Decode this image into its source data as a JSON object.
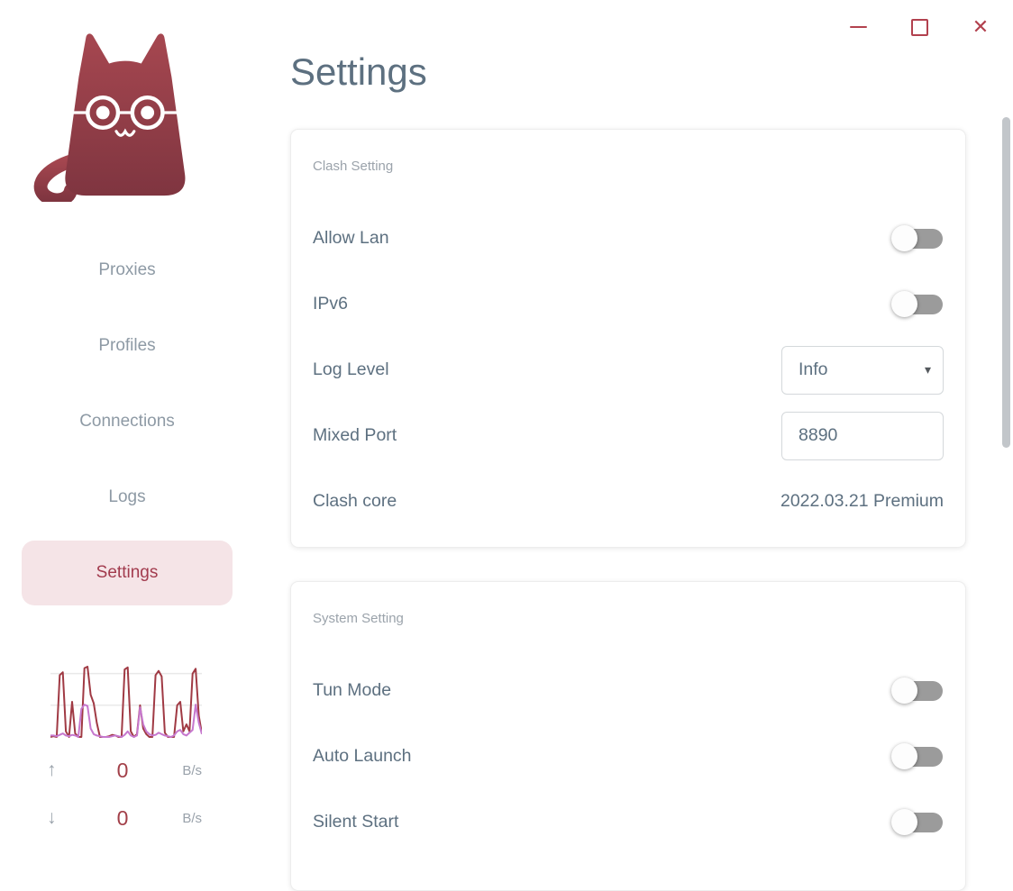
{
  "window": {
    "controls": [
      {
        "name": "minimize"
      },
      {
        "name": "maximize"
      },
      {
        "name": "close"
      }
    ]
  },
  "icons": {
    "minimize": "─",
    "maximize": "□",
    "close": "✕",
    "caret_down": "▾",
    "arrow_up": "↑",
    "arrow_down": "↓",
    "logo": "clash-cat-with-glasses"
  },
  "sidebar": {
    "items": [
      {
        "label": "Proxies",
        "active": false
      },
      {
        "label": "Profiles",
        "active": false
      },
      {
        "label": "Connections",
        "active": false
      },
      {
        "label": "Logs",
        "active": false
      },
      {
        "label": "Settings",
        "active": true
      }
    ],
    "traffic": {
      "upload": {
        "value": "0",
        "unit": "B/s"
      },
      "download": {
        "value": "0",
        "unit": "B/s"
      }
    }
  },
  "main": {
    "title": "Settings",
    "cards": [
      {
        "section": "Clash Setting",
        "rows": [
          {
            "type": "toggle",
            "label": "Allow Lan",
            "state": "off"
          },
          {
            "type": "toggle",
            "label": "IPv6",
            "state": "off"
          },
          {
            "type": "select",
            "label": "Log Level",
            "value": "Info"
          },
          {
            "type": "input",
            "label": "Mixed Port",
            "value": "8890"
          },
          {
            "type": "static",
            "label": "Clash core",
            "value": "2022.03.21 Premium"
          }
        ]
      },
      {
        "section": "System Setting",
        "rows": [
          {
            "type": "toggle",
            "label": "Tun Mode",
            "state": "off"
          },
          {
            "type": "toggle",
            "label": "Auto Launch",
            "state": "off"
          },
          {
            "type": "toggle",
            "label": "Silent Start",
            "state": "off"
          }
        ]
      }
    ]
  },
  "chart_data": {
    "type": "line",
    "title": "traffic-history",
    "xlabel": "",
    "ylabel": "",
    "ylim": [
      0,
      100
    ],
    "grid": true,
    "gridline_values": [
      44,
      89
    ],
    "legend_position": "none",
    "series": [
      {
        "name": "upload",
        "color": "#a03a44",
        "values": [
          0,
          1,
          0,
          88,
          92,
          8,
          0,
          50,
          5,
          0,
          0,
          98,
          100,
          60,
          48,
          20,
          0,
          0,
          0,
          1,
          3,
          2,
          0,
          0,
          96,
          99,
          8,
          0,
          4,
          45,
          12,
          4,
          0,
          0,
          88,
          94,
          86,
          6,
          0,
          0,
          0,
          45,
          50,
          8,
          18,
          8,
          90,
          97,
          30,
          5
        ]
      },
      {
        "name": "download",
        "color": "#c678ce",
        "values": [
          2,
          2,
          1,
          3,
          5,
          2,
          1,
          3,
          2,
          0,
          40,
          46,
          44,
          12,
          4,
          2,
          1,
          0,
          0,
          0,
          1,
          2,
          1,
          0,
          3,
          8,
          2,
          0,
          2,
          42,
          18,
          8,
          4,
          2,
          3,
          6,
          4,
          2,
          1,
          0,
          2,
          8,
          10,
          4,
          2,
          6,
          10,
          46,
          20,
          4
        ]
      }
    ]
  },
  "colors": {
    "accent_red": "#b2414e",
    "active_nav_text": "#a23b4e",
    "active_nav_bg": "#f5e4e7",
    "title_text": "#5d7080",
    "nav_text": "#8e9aa5",
    "section_text": "#9ba3ab",
    "toggle_track_off": "#9b9b9b",
    "chart_up": "#a03a44",
    "chart_down": "#c678ce",
    "cat_gradient_top": "#a64750",
    "cat_gradient_bottom": "#7f3540",
    "scrollbar": "#c2c6ca"
  }
}
